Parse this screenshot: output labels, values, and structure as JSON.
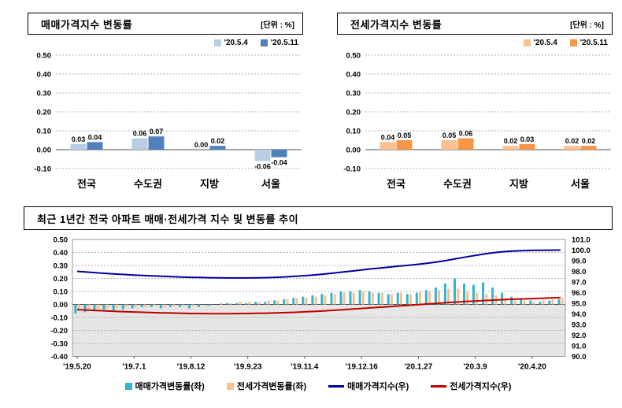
{
  "chart_data": [
    {
      "id": "sales-change",
      "type": "bar",
      "title": "매매가격지수 변동률",
      "unit": "[단위 : %]",
      "categories": [
        "전국",
        "수도권",
        "지방",
        "서울"
      ],
      "series": [
        {
          "name": "'20.5.4",
          "color": "#B9CDE5",
          "values": [
            0.03,
            0.06,
            0.0,
            -0.06
          ]
        },
        {
          "name": "'20.5.11",
          "color": "#4F81BD",
          "values": [
            0.04,
            0.07,
            0.02,
            -0.04
          ]
        }
      ],
      "ylim": [
        -0.1,
        0.5
      ],
      "ytick_step": 0.1,
      "grid": true,
      "legend_position": "top-right"
    },
    {
      "id": "jeonse-change",
      "type": "bar",
      "title": "전세가격지수 변동률",
      "unit": "[단위 : %]",
      "categories": [
        "전국",
        "수도권",
        "지방",
        "서울"
      ],
      "series": [
        {
          "name": "'20.5.4",
          "color": "#FAC090",
          "values": [
            0.04,
            0.05,
            0.02,
            0.02
          ]
        },
        {
          "name": "'20.5.11",
          "color": "#F79646",
          "values": [
            0.05,
            0.06,
            0.03,
            0.02
          ]
        }
      ],
      "ylim": [
        -0.1,
        0.5
      ],
      "ytick_step": 0.1,
      "grid": true,
      "legend_position": "top-right"
    },
    {
      "id": "trend",
      "type": "combo",
      "title": "최근 1년간 전국 아파트 매매·전세가격 지수 및 변동률 추이",
      "x_tick_labels": [
        "'19.5.20",
        "'19.7.1",
        "'19.8.12",
        "'19.9.23",
        "'19.11.4",
        "'19.12.16",
        "'20.1.27",
        "'20.3.9",
        "'20.4.20"
      ],
      "x_tick_indices": [
        0,
        6,
        12,
        18,
        24,
        30,
        36,
        42,
        48
      ],
      "left_ylim": [
        -0.4,
        0.5
      ],
      "left_ytick_step": 0.1,
      "right_ylim": [
        90.0,
        101.0
      ],
      "right_ytick_step": 1.0,
      "grid": true,
      "legend_position": "bottom-center",
      "bar_series": [
        {
          "name": "매매가격변동률(좌)",
          "axis": "left",
          "color": "#33B3CC",
          "values": [
            -0.07,
            -0.06,
            -0.05,
            -0.04,
            -0.05,
            -0.04,
            -0.03,
            -0.02,
            -0.02,
            -0.03,
            -0.02,
            -0.02,
            -0.03,
            -0.02,
            -0.01,
            0.0,
            0.01,
            0.01,
            0.01,
            0.02,
            0.02,
            0.03,
            0.04,
            0.05,
            0.06,
            0.07,
            0.08,
            0.09,
            0.1,
            0.1,
            0.11,
            0.1,
            0.09,
            0.08,
            0.09,
            0.08,
            0.09,
            0.11,
            0.13,
            0.16,
            0.2,
            0.16,
            0.15,
            0.17,
            0.13,
            0.09,
            0.06,
            0.04,
            0.03,
            0.02,
            0.03,
            0.04
          ]
        },
        {
          "name": "전세가격변동률(좌)",
          "axis": "left",
          "color": "#FAC090",
          "values": [
            -0.05,
            -0.04,
            -0.04,
            -0.03,
            -0.03,
            -0.02,
            -0.02,
            -0.02,
            -0.01,
            -0.02,
            -0.01,
            -0.01,
            -0.01,
            0.0,
            0.0,
            0.01,
            0.01,
            0.02,
            0.02,
            0.02,
            0.03,
            0.03,
            0.04,
            0.05,
            0.05,
            0.06,
            0.07,
            0.08,
            0.09,
            0.09,
            0.1,
            0.09,
            0.09,
            0.08,
            0.09,
            0.08,
            0.1,
            0.1,
            0.11,
            0.12,
            0.12,
            0.1,
            0.09,
            0.08,
            0.07,
            0.05,
            0.04,
            0.03,
            0.02,
            0.03,
            0.04,
            0.05
          ]
        }
      ],
      "line_series": [
        {
          "name": "매매가격지수(우)",
          "axis": "right",
          "color": "#0000A0",
          "values": [
            98.0,
            97.93,
            97.87,
            97.81,
            97.75,
            97.7,
            97.65,
            97.61,
            97.57,
            97.53,
            97.5,
            97.47,
            97.44,
            97.42,
            97.4,
            97.39,
            97.38,
            97.38,
            97.38,
            97.39,
            97.41,
            97.44,
            97.48,
            97.53,
            97.59,
            97.66,
            97.74,
            97.83,
            97.93,
            98.03,
            98.13,
            98.23,
            98.32,
            98.41,
            98.5,
            98.58,
            98.67,
            98.77,
            98.89,
            99.03,
            99.19,
            99.35,
            99.5,
            99.64,
            99.76,
            99.85,
            99.91,
            99.95,
            99.97,
            99.98,
            99.99,
            100.0
          ]
        },
        {
          "name": "전세가격지수(우)",
          "axis": "right",
          "color": "#C00000",
          "values": [
            94.4,
            94.36,
            94.32,
            94.28,
            94.24,
            94.21,
            94.18,
            94.15,
            94.12,
            94.1,
            94.08,
            94.06,
            94.04,
            94.03,
            94.02,
            94.02,
            94.02,
            94.03,
            94.04,
            94.05,
            94.07,
            94.09,
            94.12,
            94.15,
            94.19,
            94.23,
            94.28,
            94.33,
            94.39,
            94.45,
            94.51,
            94.57,
            94.63,
            94.69,
            94.75,
            94.81,
            94.87,
            94.93,
            94.99,
            95.05,
            95.11,
            95.16,
            95.21,
            95.26,
            95.3,
            95.34,
            95.38,
            95.41,
            95.44,
            95.47,
            95.5,
            95.53
          ]
        }
      ]
    }
  ],
  "colors": {
    "gridline": "#B3B3B3",
    "zero_axis": "#4D4D4D",
    "below_zero_band": "#E6E6E6",
    "plot_border": "#999999"
  }
}
